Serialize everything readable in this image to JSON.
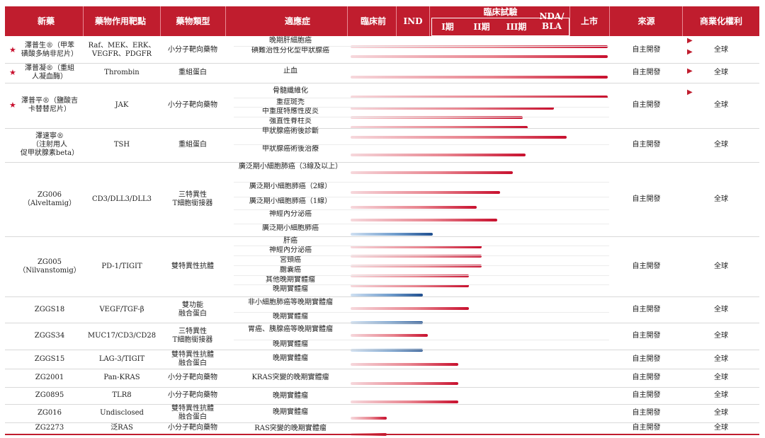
{
  "header": {
    "drug": "新藥",
    "target": "藥物作用靶點",
    "type": "藥物類型",
    "indication": "適應症",
    "preclinical": "臨床前",
    "ind": "IND",
    "clinical": "臨床試驗",
    "phase1": "I期",
    "phase2": "II期",
    "phase3": "III期",
    "nda": "NDA/",
    "bla": "BLA",
    "market": "上市",
    "source": "來源",
    "rights": "商業化權利"
  },
  "colors": {
    "header_bg": "#c01d2e",
    "bar_red": "#c8102e",
    "bar_blue": "#1f4f8f",
    "star": "#c8102e"
  },
  "icons": {
    "star": "★",
    "flag": "▶"
  },
  "drugs": [
    {
      "lines": [
        "澤普生®（甲苯",
        "磺酸多納非尼片）"
      ],
      "target_lines": [
        "Raf、MEK、ERK、",
        "VEGFR、PDGFR"
      ],
      "type_lines": [
        "小分子靶向藥物"
      ],
      "source": "自主開發",
      "rights": "全球",
      "indications": [
        {
          "label": "晚期肝細胞癌",
          "progress": 1.0,
          "color": "red"
        },
        {
          "label": "碘難治性分化型甲狀腺癌",
          "progress": 1.0,
          "color": "red"
        }
      ]
    },
    {
      "lines": [
        "澤普凝®（重組",
        "人凝血酶）"
      ],
      "target_lines": [
        "Thrombin"
      ],
      "type_lines": [
        "重組蛋白"
      ],
      "source": "自主開發",
      "rights": "全球",
      "indications": [
        {
          "label": "止血",
          "progress": 1.0,
          "color": "red"
        }
      ]
    },
    {
      "lines": [
        "澤普平®（鹽酸吉",
        "卡替替尼片）"
      ],
      "target_lines": [
        "JAK"
      ],
      "type_lines": [
        "小分子靶向藥物"
      ],
      "source": "自主開發",
      "rights": "全球",
      "indications": [
        {
          "label": "骨髓纖維化",
          "progress": 1.0,
          "color": "red"
        },
        {
          "label": "重症斑禿",
          "progress": 0.79,
          "color": "red"
        },
        {
          "label": "中重度特應性皮炎",
          "progress": 0.67,
          "color": "red"
        },
        {
          "label": "強直性脊柱炎",
          "progress": 0.69,
          "color": "red"
        }
      ]
    },
    {
      "lines": [
        "澤速寧®",
        "（注射用人",
        "促甲狀腺素beta）"
      ],
      "target_lines": [
        "TSH"
      ],
      "type_lines": [
        "重組蛋白"
      ],
      "source": "自主開發",
      "rights": "全球",
      "indications": [
        {
          "label": "甲狀腺癌術後診斷",
          "progress": 0.84,
          "color": "red"
        },
        {
          "label": "甲狀腺癌術後治療",
          "progress": 0.68,
          "color": "red"
        }
      ]
    },
    {
      "lines": [
        "ZG006",
        "（Alveltamig）"
      ],
      "target_lines": [
        "CD3/DLL3/DLL3"
      ],
      "type_lines": [
        "三特異性",
        "T細胞銜接器"
      ],
      "source": "自主開發",
      "rights": "全球",
      "indications": [
        {
          "label": "廣泛期小細胞肺癌（3線及以上）",
          "progress": 0.63,
          "color": "red"
        },
        {
          "label": "廣泛期小細胞肺癌（2線）",
          "progress": 0.58,
          "color": "red"
        },
        {
          "label": "廣泛期小細胞肺癌（1線）",
          "progress": 0.49,
          "color": "red"
        },
        {
          "label": "神經內分泌癌",
          "progress": 0.57,
          "color": "red"
        },
        {
          "label": "廣泛期小細胞肺癌",
          "progress": 0.32,
          "color": "blue"
        }
      ]
    },
    {
      "lines": [
        "ZG005",
        "（Nilvanstomig）"
      ],
      "target_lines": [
        "PD-1/TIGIT"
      ],
      "type_lines": [
        "雙特異性抗體"
      ],
      "source": "自主開發",
      "rights": "全球",
      "indications": [
        {
          "label": "肝癌",
          "progress": 0.51,
          "color": "red"
        },
        {
          "label": "神經內分泌癌",
          "progress": 0.51,
          "color": "red"
        },
        {
          "label": "宮頸癌",
          "progress": 0.51,
          "color": "red"
        },
        {
          "label": "膽囊癌",
          "progress": 0.46,
          "color": "red"
        },
        {
          "label": "其他晚期實體瘤",
          "progress": 0.46,
          "color": "red"
        },
        {
          "label": "晚期實體瘤",
          "progress": 0.28,
          "color": "blue"
        }
      ]
    },
    {
      "lines": [
        "ZGGS18"
      ],
      "target_lines": [
        "VEGF/TGF-β"
      ],
      "type_lines": [
        "雙功能",
        "融合蛋白"
      ],
      "source": "自主開發",
      "rights": "全球",
      "indications": [
        {
          "label": "非小細胞肺癌等晚期實體瘤",
          "progress": 0.46,
          "color": "red"
        },
        {
          "label": "晚期實體瘤",
          "progress": 0.28,
          "color": "blue"
        }
      ]
    },
    {
      "lines": [
        "ZGGS34"
      ],
      "target_lines": [
        "MUC17/CD3/CD28"
      ],
      "type_lines": [
        "三特異性",
        "T細胞銜接器"
      ],
      "source": "自主開發",
      "rights": "全球",
      "indications": [
        {
          "label": "胃癌、胰腺癌等晚期實體瘤",
          "progress": 0.3,
          "color": "red"
        },
        {
          "label": "晚期實體瘤",
          "progress": 0.28,
          "color": "blue"
        }
      ]
    },
    {
      "lines": [
        "ZGGS15"
      ],
      "target_lines": [
        "LAG-3/TIGIT"
      ],
      "type_lines": [
        "雙特異性抗體",
        "融合蛋白"
      ],
      "source": "自主開發",
      "rights": "全球",
      "indications": [
        {
          "label": "晚期實體瘤",
          "progress": 0.42,
          "color": "red"
        }
      ]
    },
    {
      "lines": [
        "ZG2001"
      ],
      "target_lines": [
        "Pan-KRAS"
      ],
      "type_lines": [
        "小分子靶向藥物"
      ],
      "source": "自主開發",
      "rights": "全球",
      "indications": [
        {
          "label": "KRAS突變的晚期實體瘤",
          "progress": 0.42,
          "color": "red"
        }
      ]
    },
    {
      "lines": [
        "ZG0895"
      ],
      "target_lines": [
        "TLR8"
      ],
      "type_lines": [
        "小分子靶向藥物"
      ],
      "source": "自主開發",
      "rights": "全球",
      "indications": [
        {
          "label": "晚期實體瘤",
          "progress": 0.42,
          "color": "red"
        }
      ]
    },
    {
      "lines": [
        "ZG016"
      ],
      "target_lines": [
        "Undisclosed"
      ],
      "type_lines": [
        "雙特異性抗體",
        "融合蛋白"
      ],
      "source": "自主開發",
      "rights": "全球",
      "indications": [
        {
          "label": "晚期實體瘤",
          "progress": 0.14,
          "color": "red"
        }
      ]
    },
    {
      "lines": [
        "ZG2273"
      ],
      "target_lines": [
        "泛RAS"
      ],
      "type_lines": [
        "小分子靶向藥物"
      ],
      "source": "自主開發",
      "rights": "全球",
      "indications": [
        {
          "label": "RAS突變的晚期實體瘤",
          "progress": 0.14,
          "color": "red"
        }
      ]
    }
  ]
}
